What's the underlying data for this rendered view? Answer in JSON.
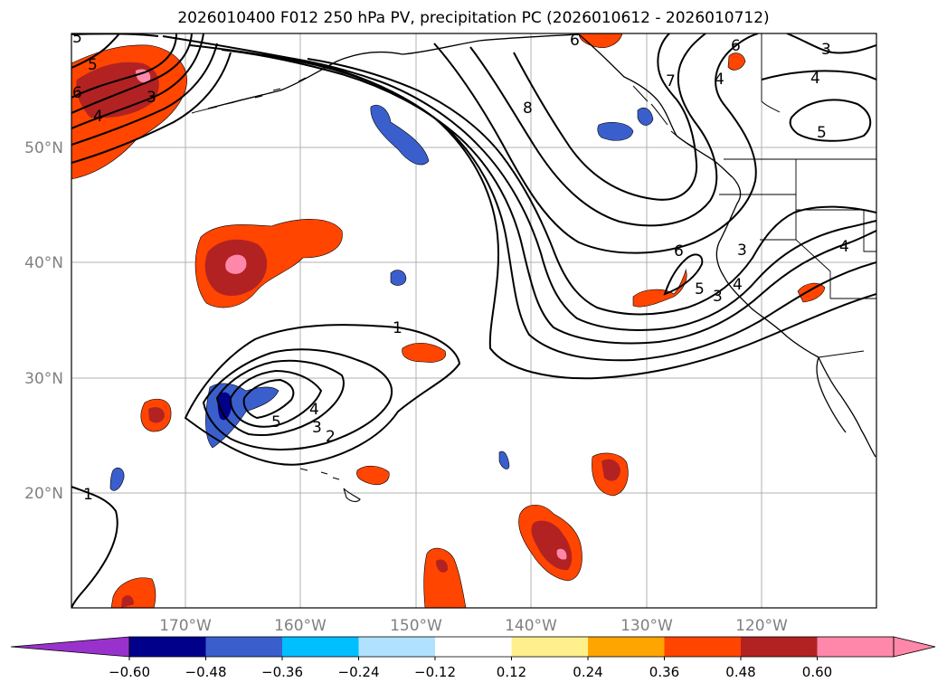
{
  "title": "2026010400 F012 250 hPa PV, precipitation PC (2026010612 - 2026010712)",
  "map": {
    "lon_ticks": [
      "170°W",
      "160°W",
      "150°W",
      "140°W",
      "130°W",
      "120°W"
    ],
    "lat_ticks": [
      "50°N",
      "40°N",
      "30°N",
      "20°N"
    ],
    "tick_color": "#808080",
    "grid_color": "#b0b0b0"
  },
  "contour_labels": [
    {
      "text": "1"
    },
    {
      "text": "1"
    },
    {
      "text": "2"
    },
    {
      "text": "3"
    },
    {
      "text": "4"
    },
    {
      "text": "5"
    },
    {
      "text": "5"
    },
    {
      "text": "3"
    },
    {
      "text": "4"
    },
    {
      "text": "6"
    },
    {
      "text": "8"
    },
    {
      "text": "7"
    },
    {
      "text": "6"
    },
    {
      "text": "4"
    },
    {
      "text": "3"
    },
    {
      "text": "5"
    },
    {
      "text": "4"
    },
    {
      "text": "3"
    },
    {
      "text": "6"
    },
    {
      "text": "5"
    },
    {
      "text": "4"
    },
    {
      "text": "3"
    },
    {
      "text": "4"
    },
    {
      "text": "5"
    },
    {
      "text": "6"
    }
  ],
  "colorbar": {
    "tick_labels": [
      "−0.60",
      "−0.48",
      "−0.36",
      "−0.24",
      "−0.12",
      "0.12",
      "0.24",
      "0.36",
      "0.48",
      "0.60"
    ],
    "colors": [
      "#9932cc",
      "#00008b",
      "#3a5fcd",
      "#00bfff",
      "#b0e2ff",
      "#ffffff",
      "#fff08c",
      "#ffa500",
      "#ff4500",
      "#b22222",
      "#ff88aa",
      "#ff88aa"
    ]
  }
}
